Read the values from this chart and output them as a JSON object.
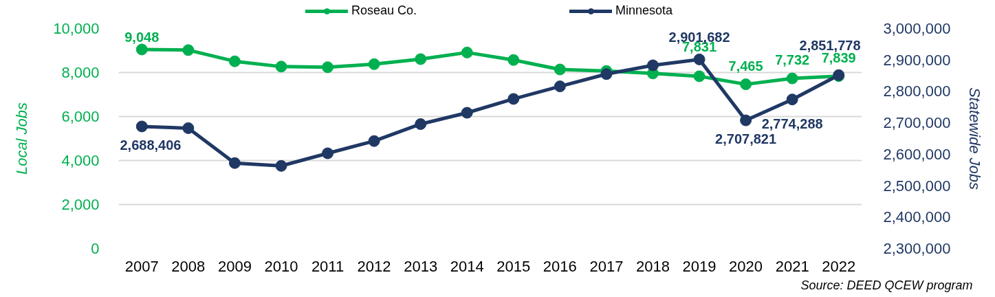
{
  "chart_data": {
    "type": "line",
    "categories": [
      "2007",
      "2008",
      "2009",
      "2010",
      "2011",
      "2012",
      "2013",
      "2014",
      "2015",
      "2016",
      "2017",
      "2018",
      "2019",
      "2020",
      "2021",
      "2022"
    ],
    "ylabel": "Local Jobs",
    "y2label": "Statewide Jobs",
    "ylim": [
      0,
      10000
    ],
    "yticks": [
      0,
      {
        "value": 2000,
        "label": "2,000"
      },
      {
        "value": 4000,
        "label": "4,000"
      },
      {
        "value": 6000,
        "label": "6,000"
      },
      {
        "value": 8000,
        "label": "8,000"
      },
      {
        "value": 10000,
        "label": "10,000"
      }
    ],
    "y2lim": [
      2300000,
      3000000
    ],
    "y2ticks": [
      {
        "value": 2300000,
        "label": "2,300,000"
      },
      {
        "value": 2400000,
        "label": "2,400,000"
      },
      {
        "value": 2500000,
        "label": "2,500,000"
      },
      {
        "value": 2600000,
        "label": "2,600,000"
      },
      {
        "value": 2700000,
        "label": "2,700,000"
      },
      {
        "value": 2800000,
        "label": "2,800,000"
      },
      {
        "value": 2900000,
        "label": "2,900,000"
      },
      {
        "value": 3000000,
        "label": "3,000,000"
      }
    ],
    "grid": "y",
    "legend": "top",
    "marker": "circle",
    "line_style": "solid",
    "annotations": [
      "Source: DEED QCEW program"
    ],
    "series": [
      {
        "name": "Roseau Co.",
        "color": "#00b050",
        "values": [
          9048,
          9020,
          8510,
          8270,
          8240,
          8380,
          8610,
          8910,
          8570,
          8140,
          8070,
          7960,
          7831,
          7465,
          7732,
          7839
        ],
        "value_labels": [
          "9,048",
          null,
          null,
          null,
          null,
          null,
          null,
          null,
          null,
          null,
          null,
          null,
          "7,831",
          "7,465",
          "7,732",
          "7,839"
        ]
      },
      {
        "name": "Minnesota",
        "color": "#203864",
        "axis": "y2",
        "values": [
          2688406,
          2683000,
          2572000,
          2563000,
          2603000,
          2642000,
          2696000,
          2732000,
          2776000,
          2816000,
          2855000,
          2883000,
          2901682,
          2707821,
          2774288,
          2851778
        ],
        "value_labels": [
          "2,688,406",
          null,
          null,
          null,
          null,
          null,
          null,
          null,
          null,
          null,
          null,
          null,
          "2,901,682",
          "2,707,821",
          "2,774,288",
          "2,851,778"
        ]
      }
    ]
  }
}
